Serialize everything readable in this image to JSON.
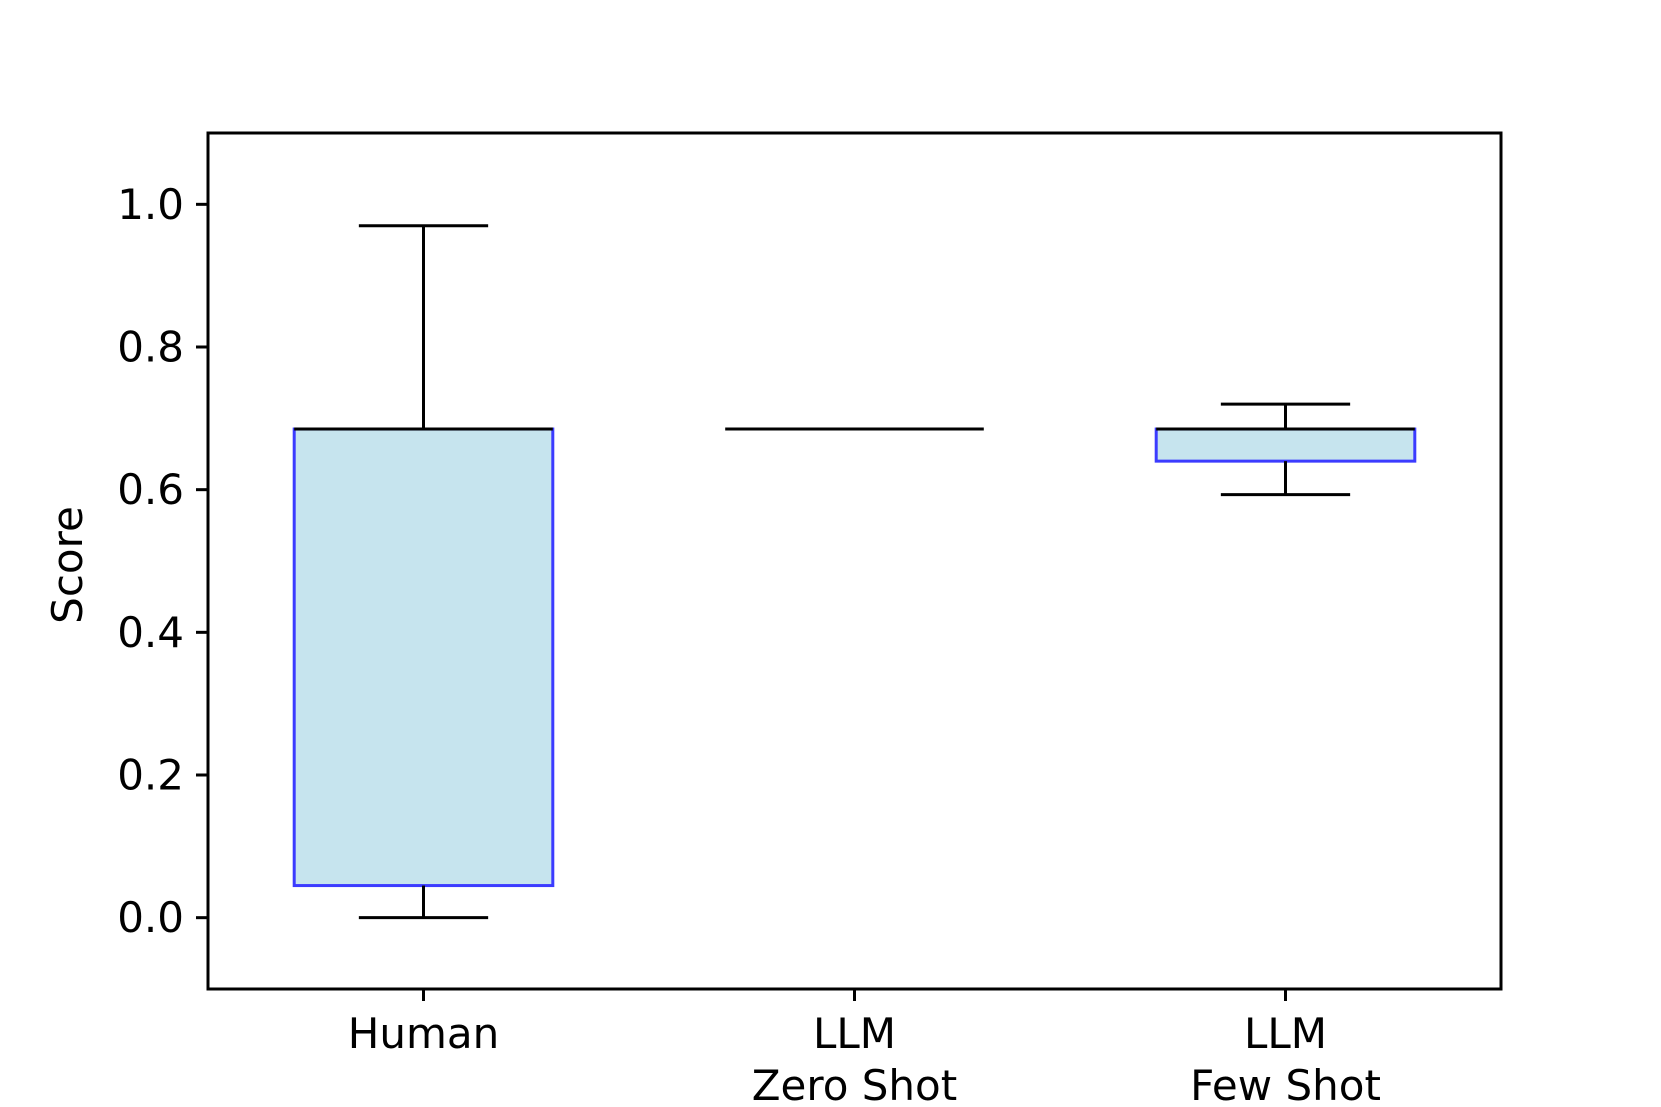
{
  "chart_data": {
    "type": "box",
    "title": "",
    "xlabel": "",
    "ylabel": "Score",
    "ylim": [
      -0.1,
      1.1
    ],
    "yticks": [
      0.0,
      0.2,
      0.4,
      0.6,
      0.8,
      1.0
    ],
    "ytick_labels": [
      "0.0",
      "0.2",
      "0.4",
      "0.6",
      "0.8",
      "1.0"
    ],
    "grid": false,
    "legend": "none",
    "categories": [
      {
        "label": [
          "Human"
        ],
        "whisker_low": 0.0,
        "q1": 0.045,
        "median": 0.685,
        "q3": 0.685,
        "whisker_high": 0.97
      },
      {
        "label": [
          "LLM",
          "Zero Shot"
        ],
        "whisker_low": 0.685,
        "q1": 0.685,
        "median": 0.685,
        "q3": 0.685,
        "whisker_high": 0.685
      },
      {
        "label": [
          "LLM",
          "Few Shot"
        ],
        "whisker_low": 0.593,
        "q1": 0.64,
        "median": 0.685,
        "q3": 0.685,
        "whisker_high": 0.72
      }
    ],
    "colors": {
      "box_fill": "#c6e4ee",
      "box_edge": "#3b3bff",
      "whisker": "#000000",
      "median": "#000000"
    }
  }
}
